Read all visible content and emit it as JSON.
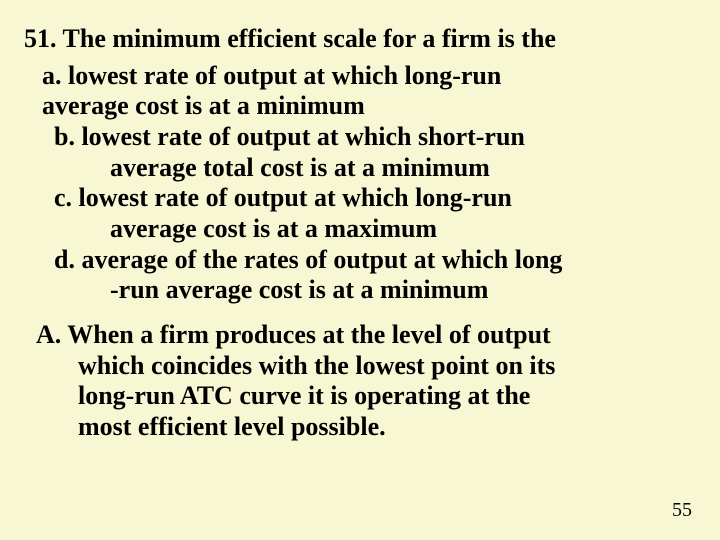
{
  "background_color": "#f7f7d4",
  "text_color": "#000000",
  "font_family": "Times New Roman",
  "font_size_pt": 26,
  "font_weight": "bold",
  "line_height": 1.18,
  "question": {
    "number": "51.",
    "stem": "The minimum efficient scale for a firm is the"
  },
  "options": {
    "a": {
      "line1": "a. lowest rate of output at which long-run",
      "line2": "average cost is at a minimum"
    },
    "b": {
      "line1": "b. lowest rate of output at which short-run",
      "line2": "average total cost is at a minimum"
    },
    "c": {
      "line1": "c. lowest rate of output at which long-run",
      "line2": "average cost is at a maximum"
    },
    "d": {
      "line1": "d. average of the rates of output at which long",
      "line2": "-run average cost is at a minimum"
    }
  },
  "answer": {
    "line1": "A.  When a firm produces at the level of output",
    "line2": "which coincides with the lowest point on its",
    "line3": "long-run ATC curve it is operating at the",
    "line4": "most efficient level possible."
  },
  "page_number": "55"
}
